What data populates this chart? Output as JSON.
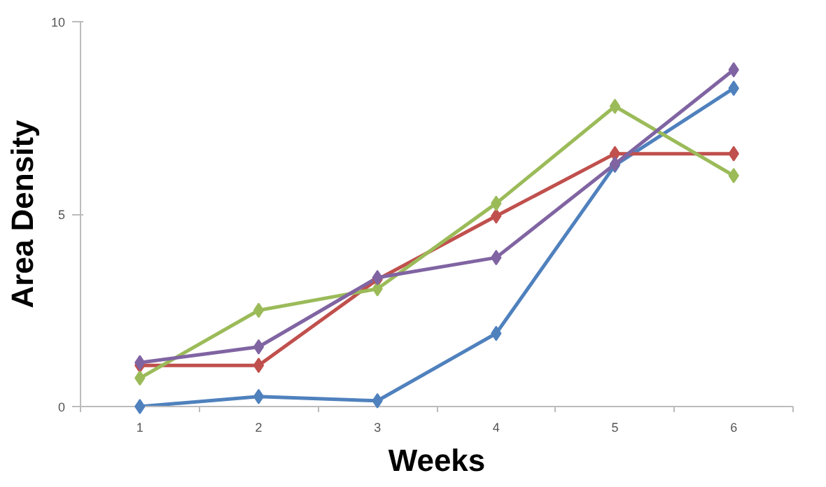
{
  "chart_data": {
    "type": "line",
    "xlabel": "Weeks",
    "ylabel": "Area Density",
    "categories": [
      "1",
      "2",
      "3",
      "4",
      "5",
      "6"
    ],
    "ylim": [
      0,
      10
    ],
    "yticks": [
      0,
      5,
      10
    ],
    "grid": false,
    "marker": "diamond",
    "line_style": "solid",
    "series": [
      {
        "color": "#4f81bd",
        "values": [
          0,
          0.26,
          0.15,
          1.9,
          6.27,
          8.27
        ]
      },
      {
        "color": "#c0504d",
        "values": [
          1.07,
          1.07,
          3.3,
          4.95,
          6.57,
          6.57
        ]
      },
      {
        "color": "#9bbb59",
        "values": [
          0.74,
          2.5,
          3.06,
          5.28,
          7.8,
          6.0
        ]
      },
      {
        "color": "#8064a2",
        "values": [
          1.14,
          1.55,
          3.35,
          3.87,
          6.3,
          8.75
        ]
      }
    ]
  }
}
